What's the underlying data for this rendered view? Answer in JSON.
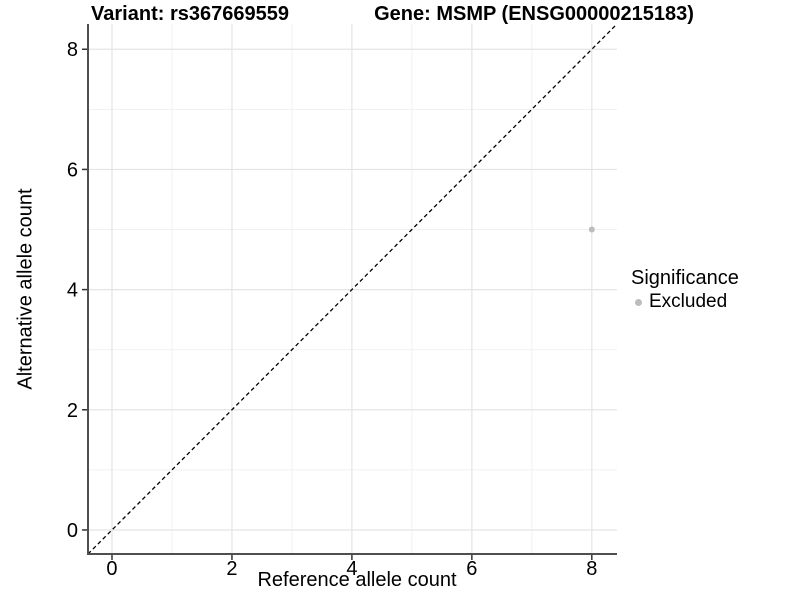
{
  "chart_data": {
    "type": "scatter",
    "titles": {
      "variant": "Variant: rs367669559",
      "gene": "Gene: MSMP (ENSG00000215183)"
    },
    "xlabel": "Reference allele count",
    "ylabel": "Alternative allele count",
    "axis": {
      "xlim": [
        -0.4,
        8.42
      ],
      "ylim": [
        -0.4,
        8.42
      ],
      "x_ticks": [
        0,
        2,
        4,
        6,
        8
      ],
      "y_ticks": [
        0,
        2,
        4,
        6,
        8
      ],
      "x_minor": [
        1,
        3,
        5,
        7
      ],
      "y_minor": [
        1,
        3,
        5,
        7
      ]
    },
    "grid": {
      "major_on": true,
      "minor_on": true
    },
    "series": [
      {
        "name": "Excluded",
        "color": "#bdbdbd",
        "point_radius": 3,
        "points": [
          {
            "x": 8,
            "y": 5
          }
        ]
      }
    ],
    "identity_line": {
      "type": "abline",
      "slope": 1,
      "intercept": 0,
      "style": "dashed",
      "color": "#000000"
    },
    "legend": {
      "title": "Significance",
      "position": "right",
      "entries": [
        {
          "label": "Excluded",
          "color": "#bdbdbd"
        }
      ]
    },
    "colors": {
      "background": "#ffffff",
      "grid_major": "#e4e4e4",
      "grid_minor": "#f1f1f1",
      "axis_line": "#4f4f4f",
      "tick": "#333333",
      "text": "#000000"
    }
  }
}
